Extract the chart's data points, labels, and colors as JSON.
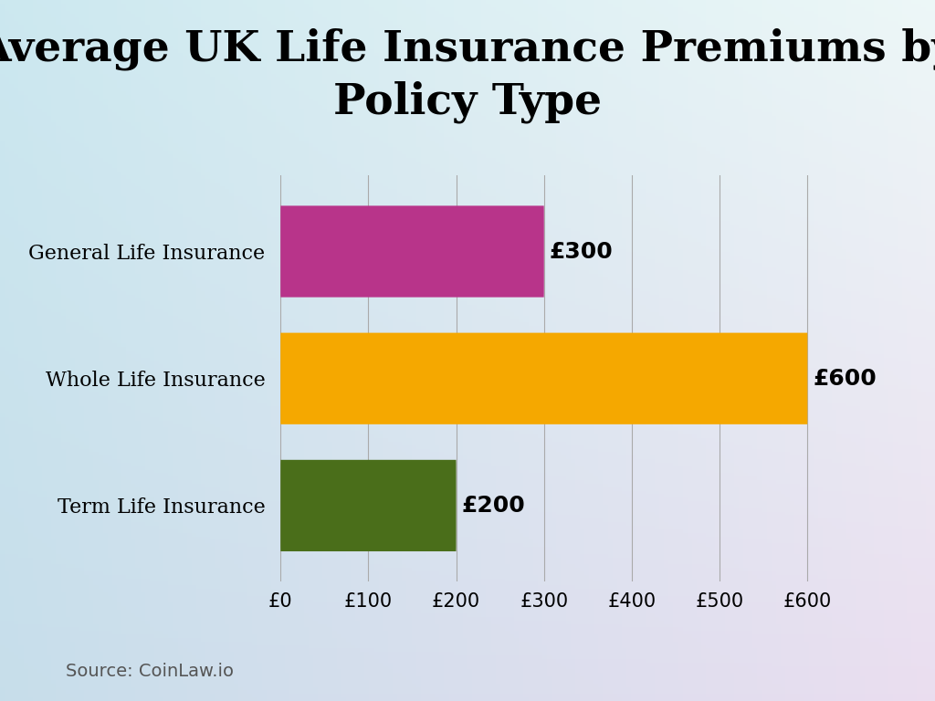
{
  "title": "Average UK Life Insurance Premiums by\nPolicy Type",
  "categories": [
    "General Life Insurance",
    "Whole Life Insurance",
    "Term Life Insurance"
  ],
  "values": [
    300,
    600,
    200
  ],
  "bar_colors": [
    "#b8348a",
    "#f5a800",
    "#4a6e1a"
  ],
  "bar_labels": [
    "£300",
    "£600",
    "£200"
  ],
  "xlabel_ticks": [
    0,
    100,
    200,
    300,
    400,
    500,
    600
  ],
  "xlabel_tick_labels": [
    "£0",
    "£100",
    "£200",
    "£300",
    "£400",
    "£500",
    "£600"
  ],
  "xlim": [
    0,
    660
  ],
  "ylim": [
    -0.6,
    2.6
  ],
  "source_text": "Source: CoinLaw.io",
  "title_fontsize": 34,
  "label_fontsize": 16,
  "tick_fontsize": 15,
  "value_label_fontsize": 18,
  "source_fontsize": 14,
  "bar_height": 0.72,
  "bg_colors": [
    "#dff0f0",
    "#ffffff",
    "#f0e0f0"
  ],
  "figsize": [
    10.24,
    7.68
  ],
  "dpi": 100
}
